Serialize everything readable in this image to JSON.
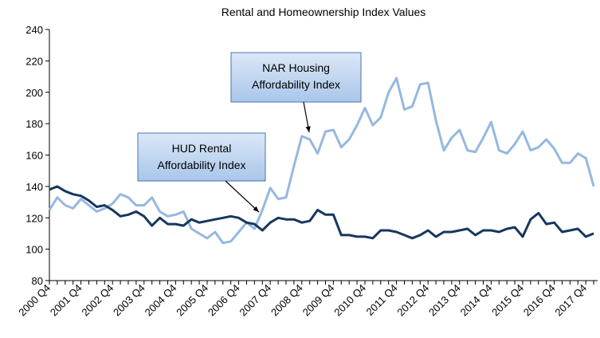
{
  "chart_data": {
    "type": "line",
    "title": "Rental and Homeownership Index Values",
    "categories": [
      "2000 Q4",
      null,
      null,
      null,
      "2001 Q4",
      null,
      null,
      null,
      "2002 Q4",
      null,
      null,
      null,
      "2003 Q4",
      null,
      null,
      null,
      "2004 Q4",
      null,
      null,
      null,
      "2005 Q4",
      null,
      null,
      null,
      "2006 Q4",
      null,
      null,
      null,
      "2007 Q4",
      null,
      null,
      null,
      "2008 Q4",
      null,
      null,
      null,
      "2009 Q4",
      null,
      null,
      null,
      "2010 Q4",
      null,
      null,
      null,
      "2011 Q4",
      null,
      null,
      null,
      "2012 Q4",
      null,
      null,
      null,
      "2013 Q4",
      null,
      null,
      null,
      "2014 Q4",
      null,
      null,
      null,
      "2015 Q4",
      null,
      null,
      null,
      "2016 Q4",
      null,
      null,
      null,
      "2017 Q4",
      null
    ],
    "series": [
      {
        "name": "NAR Housing Affordability Index",
        "color": "#95b8e0",
        "values": [
          125,
          133,
          128,
          126,
          132,
          128,
          124,
          126,
          129,
          135,
          133,
          128,
          128,
          133,
          124,
          121,
          122,
          124,
          113,
          110,
          107,
          111,
          104,
          105,
          111,
          117,
          113,
          125,
          139,
          132,
          133,
          153,
          172,
          170,
          161,
          175,
          176,
          165,
          170,
          179,
          190,
          179,
          184,
          200,
          209,
          189,
          191,
          205,
          206,
          182,
          163,
          171,
          176,
          163,
          162,
          171,
          181,
          163,
          161,
          167,
          175,
          163,
          165,
          170,
          164,
          155,
          155,
          161,
          158,
          140
        ]
      },
      {
        "name": "HUD Rental Affordability Index",
        "color": "#17375e",
        "values": [
          138,
          140,
          137,
          135,
          134,
          131,
          127,
          128,
          125,
          121,
          122,
          124,
          121,
          115,
          120,
          116,
          116,
          115,
          119,
          117,
          118,
          119,
          120,
          121,
          120,
          117,
          116,
          112,
          117,
          120,
          119,
          119,
          117,
          118,
          125,
          122,
          122,
          109,
          109,
          108,
          108,
          107,
          112,
          112,
          111,
          109,
          107,
          109,
          112,
          108,
          111,
          111,
          112,
          113,
          109,
          112,
          112,
          111,
          113,
          114,
          108,
          119,
          123,
          116,
          117,
          111,
          112,
          113,
          108,
          110
        ]
      }
    ],
    "annotations": [
      {
        "text": [
          "NAR Housing",
          "Affordability Index"
        ],
        "series": 0
      },
      {
        "text": [
          "HUD Rental",
          "Affordability Index"
        ],
        "series": 1
      }
    ],
    "ylim": [
      80,
      240
    ],
    "yticks": [
      80,
      100,
      120,
      140,
      160,
      180,
      200,
      220,
      240
    ],
    "grid": false
  }
}
